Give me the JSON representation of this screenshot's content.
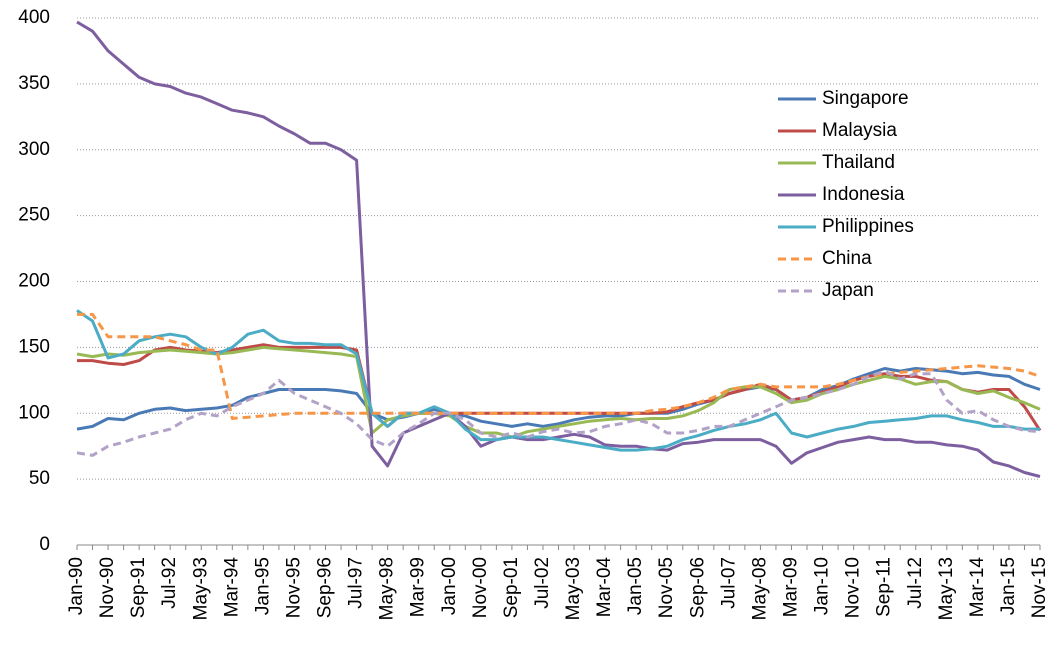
{
  "chart_data": {
    "type": "line",
    "categories": [
      "Jan-90",
      null,
      "Nov-90",
      null,
      "Sep-91",
      null,
      "Jul-92",
      null,
      "May-93",
      null,
      "Mar-94",
      null,
      "Jan-95",
      null,
      "Nov-95",
      null,
      "Sep-96",
      null,
      "Jul-97",
      null,
      "May-98",
      null,
      "Mar-99",
      null,
      "Jan-00",
      null,
      "Nov-00",
      null,
      "Sep-01",
      null,
      "Jul-02",
      null,
      "May-03",
      null,
      "Mar-04",
      null,
      "Jan-05",
      null,
      "Nov-05",
      null,
      "Sep-06",
      null,
      "Jul-07",
      null,
      "May-08",
      null,
      "Mar-09",
      null,
      "Jan-10",
      null,
      "Nov-10",
      null,
      "Sep-11",
      null,
      "Jul-12",
      null,
      "May-13",
      null,
      "Mar-14",
      null,
      "Jan-15",
      null,
      "Nov-15"
    ],
    "ylim": [
      0,
      400
    ],
    "yticks": [
      0,
      50,
      100,
      150,
      200,
      250,
      300,
      350,
      400
    ],
    "grid": true,
    "legend": "upper right",
    "series": [
      {
        "name": "Singapore",
        "color": "#4a7ab5",
        "dash": false,
        "values": [
          88,
          90,
          96,
          95,
          100,
          103,
          104,
          102,
          103,
          104,
          106,
          112,
          115,
          118,
          118,
          118,
          118,
          117,
          115,
          100,
          95,
          97,
          100,
          103,
          100,
          98,
          94,
          92,
          90,
          92,
          90,
          92,
          95,
          97,
          98,
          98,
          100,
          100,
          100,
          103,
          107,
          110,
          115,
          118,
          120,
          118,
          110,
          112,
          118,
          121,
          126,
          130,
          134,
          132,
          134,
          133,
          132,
          130,
          131,
          129,
          128,
          122,
          118
        ]
      },
      {
        "name": "Malaysia",
        "color": "#be4b48",
        "dash": false,
        "values": [
          140,
          140,
          138,
          137,
          140,
          148,
          150,
          148,
          147,
          146,
          148,
          150,
          152,
          150,
          150,
          150,
          150,
          150,
          148,
          100,
          90,
          100,
          100,
          100,
          100,
          100,
          100,
          100,
          100,
          100,
          100,
          100,
          100,
          100,
          100,
          100,
          100,
          100,
          101,
          105,
          108,
          110,
          115,
          118,
          122,
          118,
          110,
          112,
          116,
          120,
          125,
          128,
          130,
          128,
          128,
          125,
          124,
          118,
          116,
          118,
          118,
          105,
          87
        ]
      },
      {
        "name": "Thailand",
        "color": "#98b954",
        "dash": false,
        "values": [
          145,
          143,
          145,
          144,
          146,
          147,
          148,
          147,
          146,
          145,
          146,
          148,
          150,
          149,
          148,
          147,
          146,
          145,
          143,
          85,
          95,
          98,
          100,
          100,
          98,
          90,
          85,
          85,
          82,
          86,
          88,
          90,
          92,
          94,
          95,
          96,
          95,
          96,
          96,
          98,
          102,
          108,
          118,
          120,
          120,
          115,
          108,
          110,
          115,
          118,
          122,
          125,
          128,
          126,
          122,
          124,
          124,
          118,
          115,
          117,
          112,
          108,
          103
        ]
      },
      {
        "name": "Indonesia",
        "color": "#7d5fa0",
        "dash": false,
        "values": [
          397,
          390,
          375,
          365,
          355,
          350,
          348,
          343,
          340,
          335,
          330,
          328,
          325,
          318,
          312,
          305,
          305,
          300,
          292,
          75,
          60,
          85,
          90,
          95,
          100,
          90,
          75,
          80,
          82,
          80,
          80,
          82,
          84,
          82,
          76,
          75,
          75,
          73,
          72,
          77,
          78,
          80,
          80,
          80,
          80,
          75,
          62,
          70,
          74,
          78,
          80,
          82,
          80,
          80,
          78,
          78,
          76,
          75,
          72,
          63,
          60,
          55,
          52
        ]
      },
      {
        "name": "Philippines",
        "color": "#4bacc6",
        "dash": false,
        "values": [
          178,
          170,
          142,
          145,
          155,
          158,
          160,
          158,
          150,
          145,
          150,
          160,
          163,
          155,
          153,
          153,
          152,
          152,
          145,
          100,
          90,
          100,
          100,
          105,
          100,
          88,
          80,
          80,
          82,
          82,
          82,
          80,
          78,
          76,
          74,
          72,
          72,
          73,
          75,
          80,
          83,
          87,
          90,
          92,
          95,
          100,
          85,
          82,
          85,
          88,
          90,
          93,
          94,
          95,
          96,
          98,
          98,
          95,
          93,
          90,
          90,
          88,
          88
        ]
      },
      {
        "name": "China",
        "color": "#f79646",
        "dash": true,
        "values": [
          175,
          175,
          158,
          158,
          158,
          158,
          155,
          152,
          148,
          148,
          96,
          97,
          98,
          99,
          100,
          100,
          100,
          100,
          100,
          100,
          100,
          100,
          100,
          100,
          100,
          100,
          100,
          100,
          100,
          100,
          100,
          100,
          100,
          100,
          100,
          100,
          100,
          102,
          103,
          105,
          108,
          112,
          118,
          120,
          122,
          120,
          120,
          120,
          120,
          122,
          125,
          128,
          130,
          131,
          132,
          133,
          134,
          135,
          136,
          135,
          134,
          132,
          128
        ]
      },
      {
        "name": "Japan",
        "color": "#b3a2c7",
        "dash": true,
        "values": [
          70,
          68,
          75,
          78,
          82,
          85,
          88,
          95,
          100,
          98,
          105,
          110,
          115,
          125,
          115,
          110,
          105,
          100,
          92,
          80,
          75,
          85,
          92,
          100,
          100,
          95,
          85,
          82,
          85,
          82,
          86,
          88,
          85,
          86,
          90,
          92,
          95,
          92,
          85,
          85,
          87,
          90,
          90,
          95,
          100,
          105,
          110,
          112,
          115,
          118,
          122,
          128,
          132,
          126,
          130,
          130,
          110,
          100,
          102,
          95,
          90,
          87,
          86
        ]
      }
    ]
  }
}
